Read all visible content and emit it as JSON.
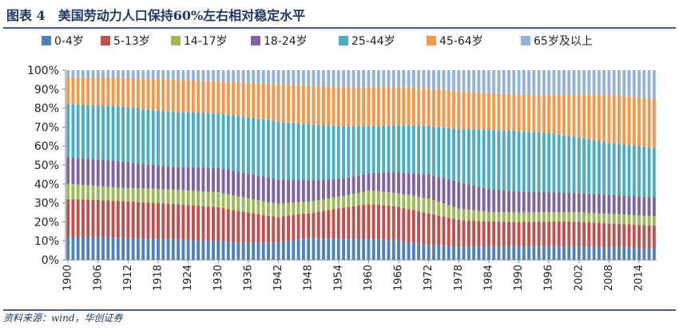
{
  "figure_title": "图表 4　美国劳动力人口保持60%左右相对稳定水平",
  "source_text": "资料来源：wind，华创证券",
  "chart_data": {
    "type": "bar",
    "stacked": true,
    "percent_stacked": true,
    "title": "",
    "xlabel": "",
    "ylabel": "",
    "ylim": [
      0,
      100
    ],
    "y_ticks": [
      "0%",
      "10%",
      "20%",
      "30%",
      "40%",
      "50%",
      "60%",
      "70%",
      "80%",
      "90%",
      "100%"
    ],
    "x_tick_labels": [
      "1900",
      "1906",
      "1912",
      "1918",
      "1924",
      "1930",
      "1936",
      "1942",
      "1948",
      "1954",
      "1960",
      "1966",
      "1972",
      "1978",
      "1984",
      "1990",
      "1996",
      "2002",
      "2008",
      "2014"
    ],
    "grid": false,
    "legend_position": "top",
    "start_year": 1900,
    "end_year": 2017,
    "series": [
      {
        "name": "0-4岁",
        "color": "#4f81bd",
        "keyframes": [
          [
            1900,
            12
          ],
          [
            1905,
            12
          ],
          [
            1930,
            10
          ],
          [
            1935,
            9
          ],
          [
            1942,
            9
          ],
          [
            1947,
            11
          ],
          [
            1955,
            11
          ],
          [
            1960,
            11
          ],
          [
            1966,
            10
          ],
          [
            1972,
            8
          ],
          [
            1978,
            7
          ],
          [
            1990,
            7
          ],
          [
            2000,
            7
          ],
          [
            2017,
            6
          ]
        ]
      },
      {
        "name": "5-13岁",
        "color": "#c0504d",
        "keyframes": [
          [
            1900,
            20
          ],
          [
            1920,
            19
          ],
          [
            1930,
            18
          ],
          [
            1936,
            16
          ],
          [
            1942,
            13
          ],
          [
            1948,
            13
          ],
          [
            1955,
            16
          ],
          [
            1960,
            18
          ],
          [
            1966,
            18
          ],
          [
            1972,
            17
          ],
          [
            1978,
            14
          ],
          [
            1984,
            13
          ],
          [
            1990,
            13
          ],
          [
            2000,
            13
          ],
          [
            2017,
            12
          ]
        ]
      },
      {
        "name": "14-17岁",
        "color": "#9bbb59",
        "keyframes": [
          [
            1900,
            8
          ],
          [
            1910,
            7
          ],
          [
            1930,
            8
          ],
          [
            1940,
            7
          ],
          [
            1948,
            6
          ],
          [
            1955,
            6
          ],
          [
            1960,
            7
          ],
          [
            1966,
            7
          ],
          [
            1972,
            8
          ],
          [
            1978,
            6
          ],
          [
            1984,
            5
          ],
          [
            1990,
            5
          ],
          [
            2000,
            5
          ],
          [
            2017,
            5
          ]
        ]
      },
      {
        "name": "18-24岁",
        "color": "#8064a2",
        "keyframes": [
          [
            1900,
            14
          ],
          [
            1910,
            14
          ],
          [
            1920,
            12
          ],
          [
            1930,
            13
          ],
          [
            1940,
            13
          ],
          [
            1948,
            11
          ],
          [
            1955,
            9
          ],
          [
            1960,
            9
          ],
          [
            1966,
            11
          ],
          [
            1972,
            13
          ],
          [
            1978,
            14
          ],
          [
            1984,
            12
          ],
          [
            1990,
            11
          ],
          [
            2000,
            10
          ],
          [
            2017,
            10
          ]
        ]
      },
      {
        "name": "25-44岁",
        "color": "#4bacc6",
        "keyframes": [
          [
            1900,
            28
          ],
          [
            1910,
            29
          ],
          [
            1920,
            29
          ],
          [
            1930,
            29
          ],
          [
            1940,
            30
          ],
          [
            1948,
            29
          ],
          [
            1955,
            27
          ],
          [
            1962,
            24
          ],
          [
            1966,
            25
          ],
          [
            1972,
            26
          ],
          [
            1978,
            28
          ],
          [
            1984,
            31
          ],
          [
            1990,
            32
          ],
          [
            1996,
            31
          ],
          [
            2002,
            29
          ],
          [
            2008,
            27
          ],
          [
            2017,
            26
          ]
        ]
      },
      {
        "name": "45-64岁",
        "color": "#f79646",
        "keyframes": [
          [
            1900,
            14
          ],
          [
            1910,
            15
          ],
          [
            1920,
            17
          ],
          [
            1930,
            17
          ],
          [
            1940,
            19
          ],
          [
            1948,
            20
          ],
          [
            1955,
            20
          ],
          [
            1960,
            20
          ],
          [
            1966,
            20
          ],
          [
            1972,
            20
          ],
          [
            1978,
            20
          ],
          [
            1984,
            19
          ],
          [
            1990,
            19
          ],
          [
            1996,
            20
          ],
          [
            2002,
            22
          ],
          [
            2008,
            25
          ],
          [
            2017,
            26
          ]
        ]
      },
      {
        "name": "65岁及以上",
        "color": "#95b3d7",
        "keyframes": [
          [
            1900,
            4
          ],
          [
            1910,
            4
          ],
          [
            1920,
            5
          ],
          [
            1930,
            6
          ],
          [
            1940,
            7
          ],
          [
            1948,
            8
          ],
          [
            1955,
            9
          ],
          [
            1960,
            9
          ],
          [
            1966,
            9
          ],
          [
            1972,
            10
          ],
          [
            1978,
            11
          ],
          [
            1984,
            12
          ],
          [
            1990,
            13
          ],
          [
            2000,
            13
          ],
          [
            2008,
            13
          ],
          [
            2017,
            15
          ]
        ]
      }
    ]
  }
}
